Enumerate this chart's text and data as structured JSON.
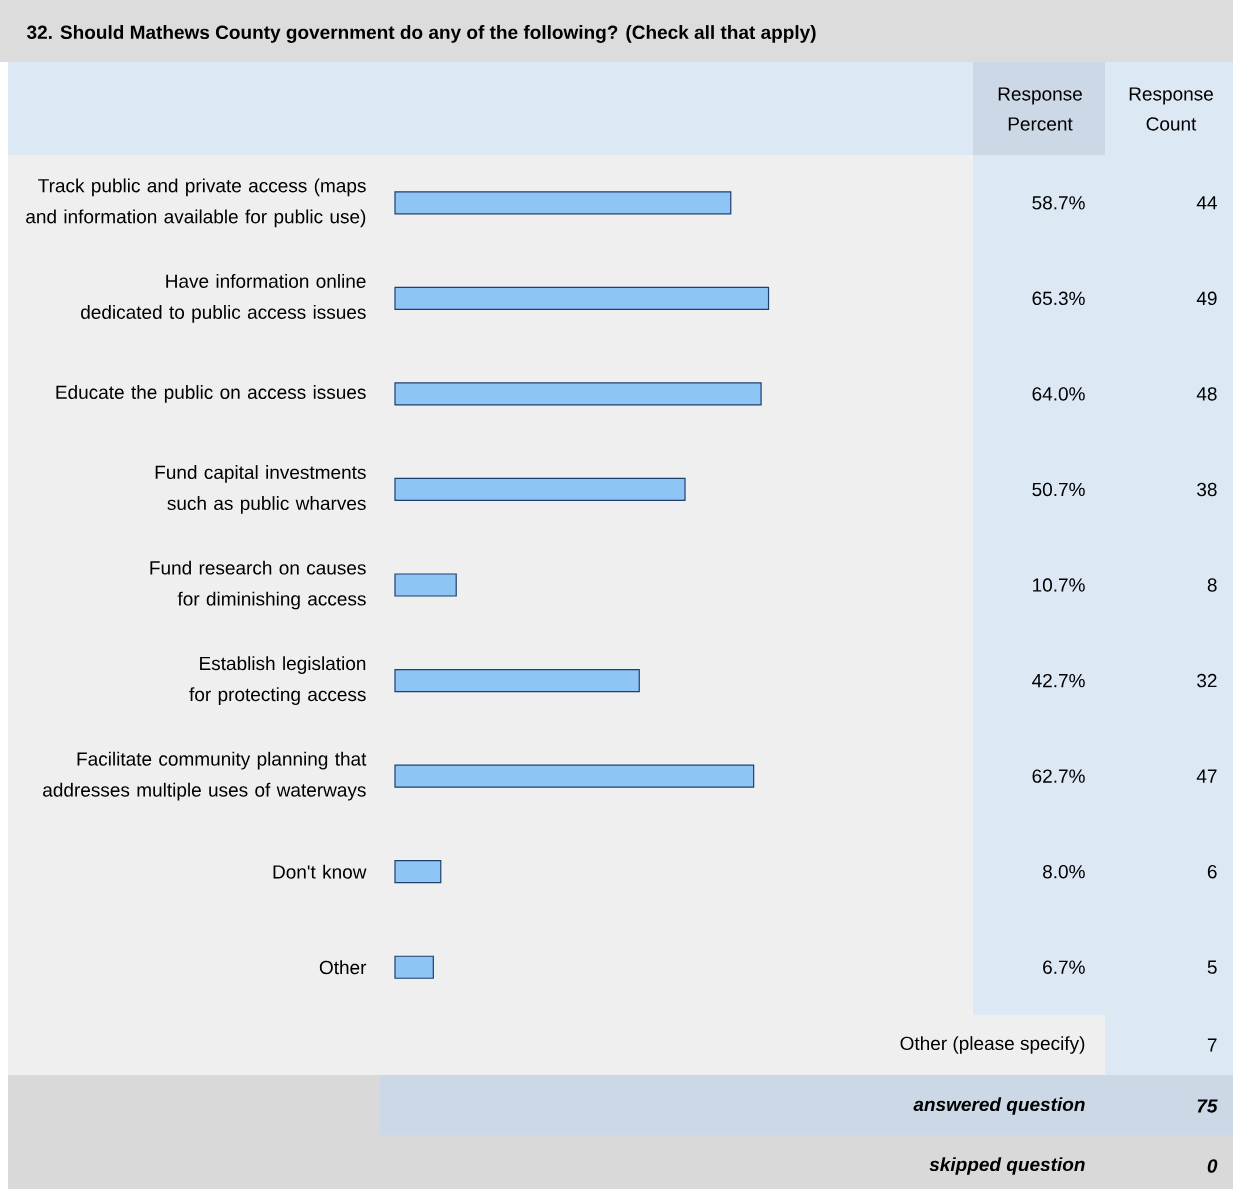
{
  "chart_data": {
    "type": "bar",
    "orientation": "horizontal",
    "title": "32. Should Mathews County government do any of the following? (Check all that apply)",
    "categories": [
      "Track public and private access (maps and information available for public use)",
      "Have information online dedicated to public access issues",
      "Educate the public on access issues",
      "Fund capital investments such as public wharves",
      "Fund research on causes for diminishing access",
      "Establish legislation for protecting access",
      "Facilitate community planning that addresses multiple uses of waterways",
      "Don't know",
      "Other"
    ],
    "values": [
      58.7,
      65.3,
      64.0,
      50.7,
      10.7,
      42.7,
      62.7,
      8.0,
      6.7
    ],
    "value_labels": [
      "58.7%",
      "65.3%",
      "64.0%",
      "50.7%",
      "10.7%",
      "42.7%",
      "62.7%",
      "8.0%",
      "6.7%"
    ],
    "color": "#8ec5f5",
    "annotations": [
      "Response Percent",
      "Response Count",
      "44",
      "49",
      "48",
      "38",
      "8",
      "32",
      "47",
      "6",
      "5",
      "Other (please specify)",
      "7",
      "answered question",
      "75",
      "skipped question",
      "0"
    ]
  }
}
